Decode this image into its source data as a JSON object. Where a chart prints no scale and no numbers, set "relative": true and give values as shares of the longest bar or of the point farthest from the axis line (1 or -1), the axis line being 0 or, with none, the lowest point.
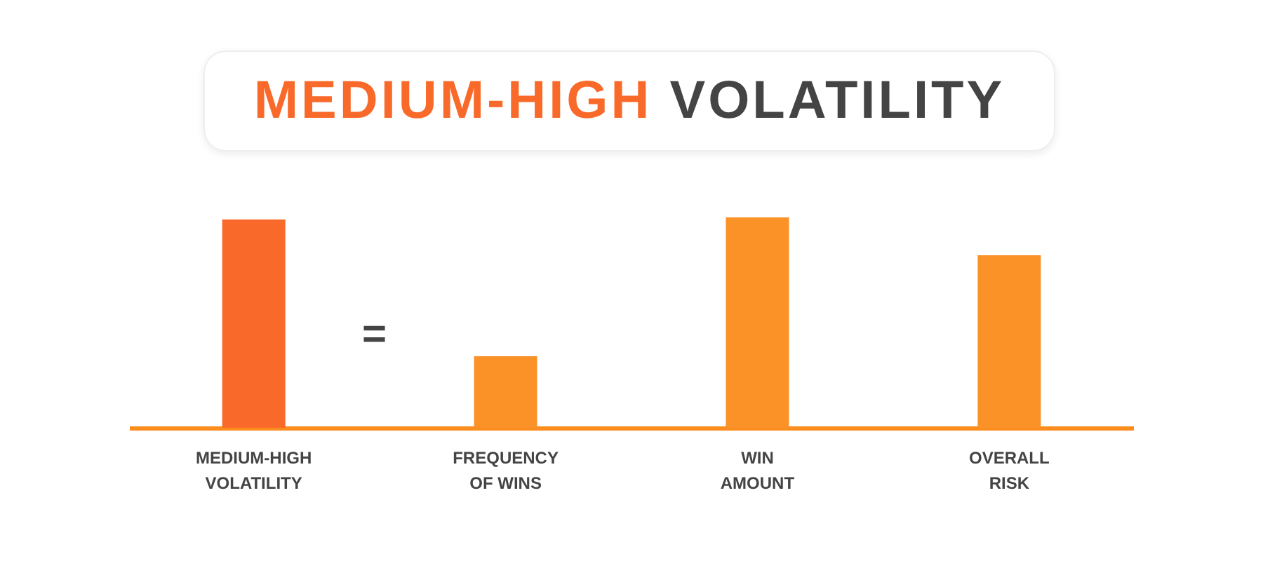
{
  "chart_data": {
    "type": "bar",
    "title": "MEDIUM-HIGH VOLATILITY",
    "relative": true,
    "categories": [
      "MEDIUM-HIGH\nVOLATILITY",
      "FREQUENCY\nOF WINS",
      "WIN\nAMOUNT",
      "OVERALL\nRISK"
    ],
    "values": [
      0.99,
      0.34,
      1,
      0.82
    ],
    "colors": [
      "#f96a2a",
      "#fb9228",
      "#fb9228",
      "#fb9228"
    ],
    "annotations": [
      "="
    ]
  }
}
